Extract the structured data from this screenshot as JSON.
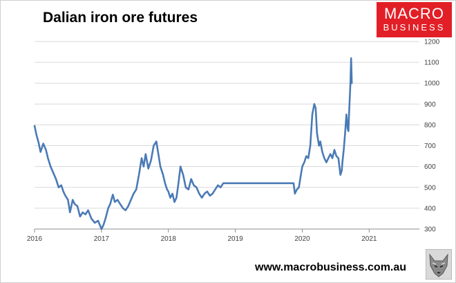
{
  "header": {
    "title": "Dalian iron ore futures"
  },
  "logo": {
    "line1": "MACRO",
    "line2": "BUSINESS",
    "color": "#e21f26"
  },
  "footer": {
    "website": "www.macrobusiness.com.au",
    "mascot_icon": "wolf-icon"
  },
  "chart_data": {
    "type": "line",
    "title": "Dalian iron ore futures",
    "xlabel": "",
    "ylabel": "",
    "xlim": [
      2016,
      2021.75
    ],
    "ylim": [
      300,
      1200
    ],
    "y_axis_side": "right",
    "grid": "horizontal",
    "line_color": "#4a7ab5",
    "x_tick_labels": [
      "2016",
      "2017",
      "2018",
      "2019",
      "2020",
      "2021"
    ],
    "y_tick_labels": [
      "300",
      "400",
      "500",
      "600",
      "700",
      "800",
      "900",
      "1000",
      "1100",
      "1200"
    ],
    "series": [
      {
        "x": [
          2016.0,
          2016.03,
          2016.06,
          2016.09,
          2016.13,
          2016.17,
          2016.2,
          2016.24,
          2016.28,
          2016.32,
          2016.36,
          2016.4,
          2016.43,
          2016.46,
          2016.5,
          2016.53,
          2016.57,
          2016.6,
          2016.64,
          2016.68,
          2016.72,
          2016.76,
          2016.8,
          2016.85,
          2016.9,
          2016.95,
          2017.0,
          2017.03,
          2017.06,
          2017.1,
          2017.13,
          2017.17,
          2017.2,
          2017.24,
          2017.28,
          2017.32,
          2017.36,
          2017.4,
          2017.44,
          2017.48,
          2017.52,
          2017.56,
          2017.6,
          2017.63,
          2017.66,
          2017.7,
          2017.74,
          2017.78,
          2017.82,
          2017.85,
          2017.88,
          2017.92,
          2017.95,
          2017.98,
          2018.0,
          2018.03,
          2018.06,
          2018.09,
          2018.12,
          2018.15,
          2018.18,
          2018.22,
          2018.26,
          2018.3,
          2018.34,
          2018.38,
          2018.42,
          2018.46,
          2018.5,
          2018.54,
          2018.58,
          2018.62,
          2018.66,
          2018.7,
          2018.74,
          2018.78,
          2018.82,
          2018.86,
          2019.2,
          2019.5,
          2019.87,
          2019.89,
          2019.92,
          2019.95,
          2019.98,
          2020.0,
          2020.03,
          2020.06,
          2020.09,
          2020.12,
          2020.15,
          2020.18,
          2020.2,
          2020.22,
          2020.25,
          2020.27,
          2020.3,
          2020.33,
          2020.36,
          2020.39,
          2020.42,
          2020.45,
          2020.48,
          2020.51,
          2020.54,
          2020.57,
          2020.59,
          2020.6,
          2020.62,
          2020.64,
          2020.66,
          2020.68,
          2020.69,
          2020.7,
          2020.72,
          2020.73,
          2020.74
        ],
        "values": [
          795,
          750,
          715,
          670,
          710,
          680,
          640,
          600,
          570,
          540,
          500,
          510,
          480,
          460,
          440,
          380,
          440,
          420,
          410,
          360,
          380,
          370,
          390,
          350,
          330,
          340,
          300,
          320,
          350,
          400,
          420,
          465,
          430,
          440,
          420,
          400,
          390,
          410,
          440,
          470,
          490,
          560,
          640,
          600,
          660,
          590,
          630,
          700,
          720,
          660,
          600,
          560,
          520,
          490,
          480,
          450,
          470,
          430,
          450,
          520,
          600,
          560,
          500,
          490,
          540,
          510,
          500,
          470,
          450,
          470,
          480,
          460,
          470,
          490,
          510,
          500,
          520,
          520,
          520,
          520,
          520,
          470,
          490,
          500,
          560,
          600,
          620,
          650,
          640,
          700,
          850,
          900,
          880,
          760,
          700,
          720,
          670,
          640,
          620,
          640,
          660,
          640,
          680,
          650,
          640,
          560,
          580,
          620,
          680,
          760,
          850,
          780,
          770,
          860,
          1000,
          1120,
          1000
        ]
      }
    ]
  }
}
